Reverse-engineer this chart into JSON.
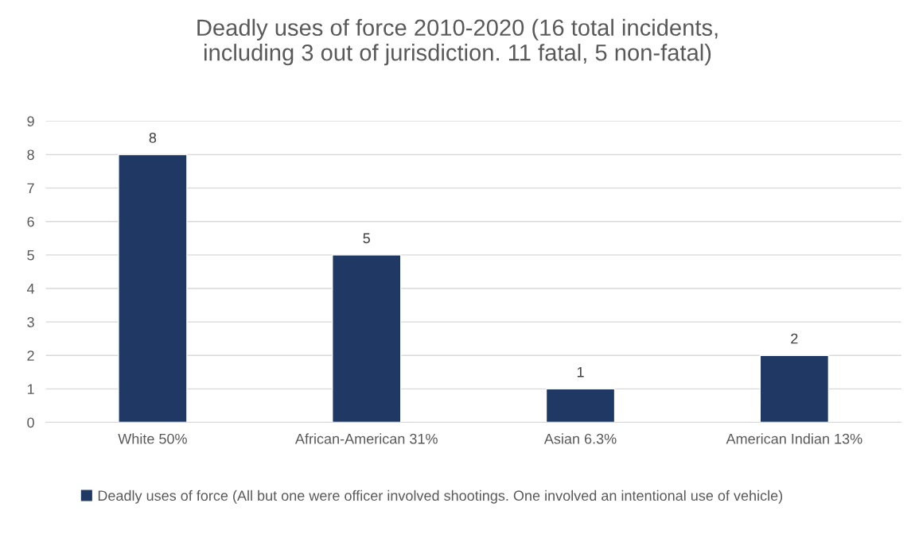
{
  "chart_data": {
    "type": "bar",
    "title": "Deadly uses of force 2010-2020 (16 total incidents,\nincluding 3 out of jurisdiction. 11 fatal, 5 non-fatal)",
    "categories": [
      "White 50%",
      "African-American 31%",
      "Asian 6.3%",
      "American Indian 13%"
    ],
    "series": [
      {
        "name": "Deadly uses of force (All but one were officer involved shootings. One involved an intentional use of vehicle)",
        "color": "#1f3864",
        "values": [
          8,
          5,
          1,
          2
        ]
      }
    ],
    "ylim": [
      0,
      9
    ],
    "yticks": [
      0,
      1,
      2,
      3,
      4,
      5,
      6,
      7,
      8,
      9
    ],
    "grid": "y",
    "legend": "bottom",
    "data_labels": true
  }
}
